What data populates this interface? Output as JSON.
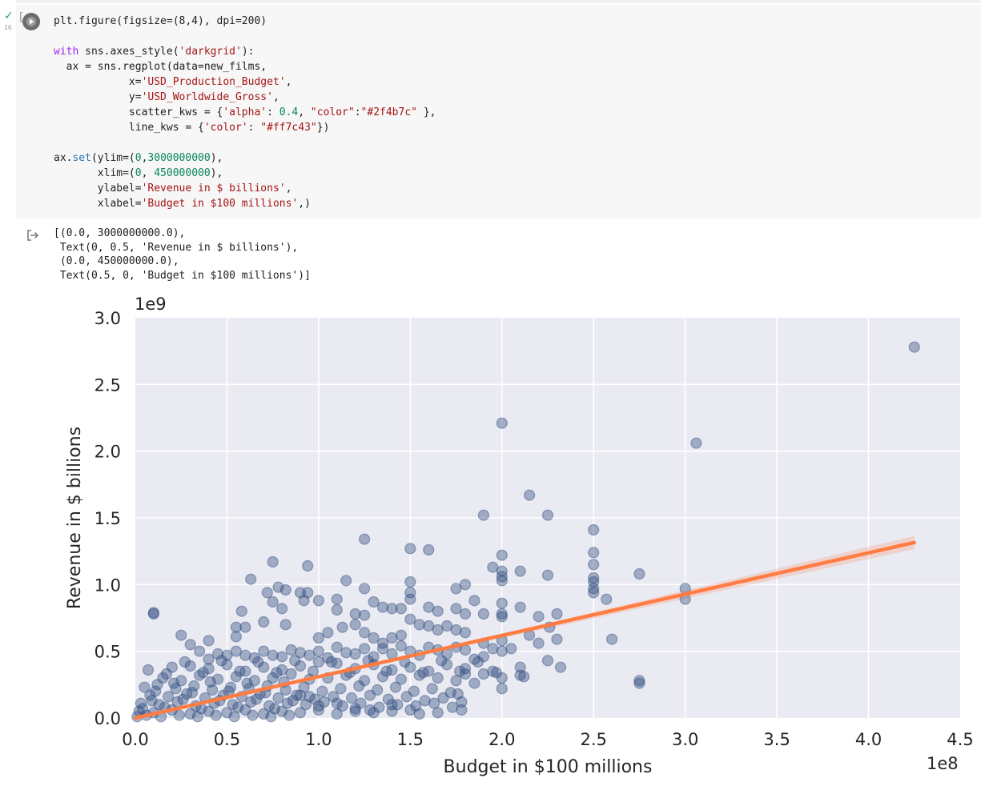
{
  "cell": {
    "status_check": "✓",
    "exec_count": "16",
    "bracket": "[",
    "run_icon": "play-circle-icon",
    "code": {
      "line1": "plt.figure(figsize=(8,4), dpi=200)",
      "line2_kw": "with",
      "line2_rest_a": " sns.axes_style(",
      "line2_str": "'darkgrid'",
      "line2_rest_b": "):",
      "line3": "  ax = sns.regplot(data=new_films,",
      "line4_a": "            x=",
      "line4_str": "'USD_Production_Budget'",
      "line4_b": ",",
      "line5_a": "            y=",
      "line5_str": "'USD_Worldwide_Gross'",
      "line5_b": ",",
      "line6_a": "            scatter_kws = {",
      "line6_s1": "'alpha'",
      "line6_b": ": ",
      "line6_n1": "0.4",
      "line6_c": ", ",
      "line6_s2": "\"color\"",
      "line6_d": ":",
      "line6_s3": "\"#2f4b7c\"",
      "line6_e": " },",
      "line7_a": "            line_kws = {",
      "line7_s1": "'color'",
      "line7_b": ": ",
      "line7_s2": "\"#ff7c43\"",
      "line7_c": "})",
      "line8_a": "ax.",
      "line8_fn": "set",
      "line8_b": "(ylim=(",
      "line8_n1": "0",
      "line8_c": ",",
      "line8_n2": "3000000000",
      "line8_d": "),",
      "line9_a": "       xlim=(",
      "line9_n1": "0",
      "line9_b": ", ",
      "line9_n2": "450000000",
      "line9_c": "),",
      "line10_a": "       ylabel=",
      "line10_str": "'Revenue in $ billions'",
      "line10_b": ",",
      "line11_a": "       xlabel=",
      "line11_str": "'Budget in $100 millions'",
      "line11_b": ",)"
    }
  },
  "output": {
    "icon": "output-arrow-icon",
    "lines": [
      "[(0.0, 3000000000.0),",
      " Text(0, 0.5, 'Revenue in $ billions'),",
      " (0.0, 450000000.0),",
      " Text(0.5, 0, 'Budget in $100 millions')]"
    ]
  },
  "chart_data": {
    "type": "scatter",
    "style": "darkgrid",
    "xlabel": "Budget in $100 millions",
    "ylabel": "Revenue in $ billions",
    "x_offset_label": "1e8",
    "y_offset_label": "1e9",
    "xlim": [
      0,
      450000000
    ],
    "ylim": [
      0,
      3000000000
    ],
    "x_ticks": [
      "0.0",
      "0.5",
      "1.0",
      "1.5",
      "2.0",
      "2.5",
      "3.0",
      "3.5",
      "4.0",
      "4.5"
    ],
    "y_ticks": [
      "0.0",
      "0.5",
      "1.0",
      "1.5",
      "2.0",
      "2.5",
      "3.0"
    ],
    "grid": true,
    "colors": {
      "scatter": "#2f4b7c",
      "line": "#ff7c43",
      "background": "#eaeaf2"
    },
    "alpha": 0.4,
    "regression": {
      "x": [
        0,
        425000000
      ],
      "y": [
        -10000000,
        1315000000
      ],
      "ci_halfwidth_end": 50000000
    },
    "points": [
      [
        425000000,
        2780000000
      ],
      [
        306000000,
        2060000000
      ],
      [
        200000000,
        2210000000
      ],
      [
        215000000,
        1670000000
      ],
      [
        225000000,
        1520000000
      ],
      [
        190000000,
        1520000000
      ],
      [
        250000000,
        1410000000
      ],
      [
        125000000,
        1340000000
      ],
      [
        150000000,
        1270000000
      ],
      [
        160000000,
        1260000000
      ],
      [
        75000000,
        1170000000
      ],
      [
        94000000,
        1140000000
      ],
      [
        250000000,
        1240000000
      ],
      [
        250000000,
        1150000000
      ],
      [
        200000000,
        1220000000
      ],
      [
        195000000,
        1130000000
      ],
      [
        200000000,
        1100000000
      ],
      [
        210000000,
        1100000000
      ],
      [
        225000000,
        1070000000
      ],
      [
        275000000,
        1080000000
      ],
      [
        250000000,
        1050000000
      ],
      [
        250000000,
        1020000000
      ],
      [
        200000000,
        1060000000
      ],
      [
        200000000,
        1030000000
      ],
      [
        150000000,
        1020000000
      ],
      [
        115000000,
        1030000000
      ],
      [
        63000000,
        1040000000
      ],
      [
        78000000,
        980000000
      ],
      [
        82000000,
        960000000
      ],
      [
        72000000,
        940000000
      ],
      [
        125000000,
        970000000
      ],
      [
        150000000,
        940000000
      ],
      [
        175000000,
        970000000
      ],
      [
        180000000,
        1000000000
      ],
      [
        250000000,
        970000000
      ],
      [
        250000000,
        940000000
      ],
      [
        300000000,
        970000000
      ],
      [
        300000000,
        890000000
      ],
      [
        257000000,
        890000000
      ],
      [
        200000000,
        860000000
      ],
      [
        210000000,
        830000000
      ],
      [
        185000000,
        880000000
      ],
      [
        150000000,
        890000000
      ],
      [
        130000000,
        870000000
      ],
      [
        110000000,
        890000000
      ],
      [
        100000000,
        880000000
      ],
      [
        92000000,
        880000000
      ],
      [
        90000000,
        940000000
      ],
      [
        94000000,
        940000000
      ],
      [
        75000000,
        870000000
      ],
      [
        80000000,
        820000000
      ],
      [
        58000000,
        800000000
      ],
      [
        10000000,
        790000000
      ],
      [
        10000000,
        780000000
      ],
      [
        110000000,
        810000000
      ],
      [
        120000000,
        780000000
      ],
      [
        125000000,
        770000000
      ],
      [
        135000000,
        830000000
      ],
      [
        140000000,
        820000000
      ],
      [
        145000000,
        820000000
      ],
      [
        160000000,
        830000000
      ],
      [
        165000000,
        800000000
      ],
      [
        175000000,
        820000000
      ],
      [
        180000000,
        780000000
      ],
      [
        190000000,
        780000000
      ],
      [
        200000000,
        780000000
      ],
      [
        200000000,
        760000000
      ],
      [
        220000000,
        760000000
      ],
      [
        230000000,
        780000000
      ],
      [
        226000000,
        680000000
      ],
      [
        230000000,
        590000000
      ],
      [
        260000000,
        590000000
      ],
      [
        275000000,
        280000000
      ],
      [
        275000000,
        260000000
      ],
      [
        225000000,
        430000000
      ],
      [
        232000000,
        380000000
      ],
      [
        210000000,
        380000000
      ],
      [
        210000000,
        320000000
      ],
      [
        212000000,
        310000000
      ],
      [
        200000000,
        220000000
      ],
      [
        195000000,
        350000000
      ],
      [
        180000000,
        330000000
      ],
      [
        176000000,
        180000000
      ],
      [
        178000000,
        60000000
      ],
      [
        150000000,
        60000000
      ],
      [
        140000000,
        100000000
      ],
      [
        128000000,
        60000000
      ],
      [
        120000000,
        70000000
      ],
      [
        110000000,
        110000000
      ],
      [
        100000000,
        90000000
      ],
      [
        95000000,
        160000000
      ],
      [
        90000000,
        170000000
      ],
      [
        25000000,
        620000000
      ],
      [
        40000000,
        580000000
      ],
      [
        30000000,
        550000000
      ],
      [
        55000000,
        610000000
      ],
      [
        55000000,
        680000000
      ],
      [
        60000000,
        680000000
      ],
      [
        70000000,
        720000000
      ],
      [
        82000000,
        700000000
      ],
      [
        100000000,
        600000000
      ],
      [
        105000000,
        640000000
      ],
      [
        113000000,
        680000000
      ],
      [
        120000000,
        700000000
      ],
      [
        125000000,
        640000000
      ],
      [
        130000000,
        600000000
      ],
      [
        135000000,
        560000000
      ],
      [
        140000000,
        600000000
      ],
      [
        145000000,
        620000000
      ],
      [
        150000000,
        740000000
      ],
      [
        155000000,
        700000000
      ],
      [
        160000000,
        690000000
      ],
      [
        165000000,
        660000000
      ],
      [
        170000000,
        690000000
      ],
      [
        175000000,
        660000000
      ],
      [
        180000000,
        640000000
      ],
      [
        190000000,
        560000000
      ],
      [
        200000000,
        580000000
      ],
      [
        205000000,
        520000000
      ],
      [
        215000000,
        620000000
      ],
      [
        220000000,
        560000000
      ],
      [
        35000000,
        500000000
      ],
      [
        40000000,
        440000000
      ],
      [
        45000000,
        480000000
      ],
      [
        50000000,
        470000000
      ],
      [
        55000000,
        500000000
      ],
      [
        60000000,
        470000000
      ],
      [
        65000000,
        450000000
      ],
      [
        70000000,
        500000000
      ],
      [
        75000000,
        470000000
      ],
      [
        80000000,
        460000000
      ],
      [
        85000000,
        510000000
      ],
      [
        90000000,
        490000000
      ],
      [
        95000000,
        470000000
      ],
      [
        100000000,
        500000000
      ],
      [
        105000000,
        450000000
      ],
      [
        110000000,
        530000000
      ],
      [
        115000000,
        490000000
      ],
      [
        120000000,
        480000000
      ],
      [
        125000000,
        520000000
      ],
      [
        130000000,
        460000000
      ],
      [
        135000000,
        520000000
      ],
      [
        140000000,
        480000000
      ],
      [
        145000000,
        540000000
      ],
      [
        150000000,
        500000000
      ],
      [
        155000000,
        470000000
      ],
      [
        160000000,
        530000000
      ],
      [
        165000000,
        510000000
      ],
      [
        170000000,
        480000000
      ],
      [
        175000000,
        530000000
      ],
      [
        180000000,
        510000000
      ],
      [
        185000000,
        440000000
      ],
      [
        190000000,
        460000000
      ],
      [
        195000000,
        520000000
      ],
      [
        200000000,
        500000000
      ],
      [
        20000000,
        380000000
      ],
      [
        30000000,
        390000000
      ],
      [
        40000000,
        370000000
      ],
      [
        50000000,
        400000000
      ],
      [
        60000000,
        350000000
      ],
      [
        70000000,
        380000000
      ],
      [
        80000000,
        360000000
      ],
      [
        90000000,
        390000000
      ],
      [
        100000000,
        420000000
      ],
      [
        110000000,
        410000000
      ],
      [
        120000000,
        370000000
      ],
      [
        130000000,
        400000000
      ],
      [
        140000000,
        360000000
      ],
      [
        150000000,
        380000000
      ],
      [
        160000000,
        350000000
      ],
      [
        170000000,
        400000000
      ],
      [
        180000000,
        370000000
      ],
      [
        190000000,
        330000000
      ],
      [
        200000000,
        300000000
      ],
      [
        15000000,
        300000000
      ],
      [
        25000000,
        280000000
      ],
      [
        35000000,
        320000000
      ],
      [
        45000000,
        290000000
      ],
      [
        55000000,
        310000000
      ],
      [
        65000000,
        280000000
      ],
      [
        75000000,
        300000000
      ],
      [
        85000000,
        330000000
      ],
      [
        95000000,
        290000000
      ],
      [
        105000000,
        300000000
      ],
      [
        115000000,
        320000000
      ],
      [
        125000000,
        280000000
      ],
      [
        135000000,
        310000000
      ],
      [
        145000000,
        290000000
      ],
      [
        155000000,
        320000000
      ],
      [
        165000000,
        300000000
      ],
      [
        175000000,
        280000000
      ],
      [
        185000000,
        260000000
      ],
      [
        5000000,
        230000000
      ],
      [
        12000000,
        250000000
      ],
      [
        22000000,
        220000000
      ],
      [
        32000000,
        240000000
      ],
      [
        42000000,
        210000000
      ],
      [
        52000000,
        230000000
      ],
      [
        62000000,
        220000000
      ],
      [
        72000000,
        240000000
      ],
      [
        82000000,
        210000000
      ],
      [
        92000000,
        230000000
      ],
      [
        102000000,
        200000000
      ],
      [
        112000000,
        220000000
      ],
      [
        122000000,
        240000000
      ],
      [
        132000000,
        210000000
      ],
      [
        142000000,
        230000000
      ],
      [
        152000000,
        200000000
      ],
      [
        162000000,
        220000000
      ],
      [
        172000000,
        190000000
      ],
      [
        8000000,
        170000000
      ],
      [
        18000000,
        160000000
      ],
      [
        28000000,
        180000000
      ],
      [
        38000000,
        150000000
      ],
      [
        48000000,
        170000000
      ],
      [
        58000000,
        160000000
      ],
      [
        68000000,
        180000000
      ],
      [
        78000000,
        150000000
      ],
      [
        88000000,
        170000000
      ],
      [
        98000000,
        140000000
      ],
      [
        108000000,
        160000000
      ],
      [
        118000000,
        150000000
      ],
      [
        128000000,
        170000000
      ],
      [
        138000000,
        140000000
      ],
      [
        148000000,
        160000000
      ],
      [
        158000000,
        130000000
      ],
      [
        168000000,
        150000000
      ],
      [
        178000000,
        120000000
      ],
      [
        3000000,
        110000000
      ],
      [
        13000000,
        100000000
      ],
      [
        23000000,
        120000000
      ],
      [
        33000000,
        90000000
      ],
      [
        43000000,
        110000000
      ],
      [
        53000000,
        100000000
      ],
      [
        63000000,
        120000000
      ],
      [
        73000000,
        90000000
      ],
      [
        83000000,
        110000000
      ],
      [
        93000000,
        100000000
      ],
      [
        103000000,
        120000000
      ],
      [
        113000000,
        90000000
      ],
      [
        123000000,
        110000000
      ],
      [
        133000000,
        80000000
      ],
      [
        143000000,
        100000000
      ],
      [
        153000000,
        90000000
      ],
      [
        163000000,
        110000000
      ],
      [
        173000000,
        80000000
      ],
      [
        2000000,
        50000000
      ],
      [
        10000000,
        40000000
      ],
      [
        20000000,
        60000000
      ],
      [
        30000000,
        30000000
      ],
      [
        40000000,
        50000000
      ],
      [
        50000000,
        40000000
      ],
      [
        60000000,
        60000000
      ],
      [
        70000000,
        30000000
      ],
      [
        80000000,
        50000000
      ],
      [
        90000000,
        40000000
      ],
      [
        100000000,
        60000000
      ],
      [
        110000000,
        30000000
      ],
      [
        120000000,
        50000000
      ],
      [
        130000000,
        40000000
      ],
      [
        140000000,
        50000000
      ],
      [
        155000000,
        30000000
      ],
      [
        165000000,
        40000000
      ],
      [
        1000000,
        10000000
      ],
      [
        6000000,
        20000000
      ],
      [
        14000000,
        10000000
      ],
      [
        24000000,
        20000000
      ],
      [
        34000000,
        10000000
      ],
      [
        44000000,
        20000000
      ],
      [
        54000000,
        10000000
      ],
      [
        64000000,
        20000000
      ],
      [
        74000000,
        10000000
      ],
      [
        84000000,
        20000000
      ],
      [
        4000000,
        70000000
      ],
      [
        9000000,
        130000000
      ],
      [
        16000000,
        80000000
      ],
      [
        26000000,
        140000000
      ],
      [
        36000000,
        70000000
      ],
      [
        46000000,
        130000000
      ],
      [
        56000000,
        80000000
      ],
      [
        66000000,
        140000000
      ],
      [
        76000000,
        70000000
      ],
      [
        86000000,
        130000000
      ],
      [
        11000000,
        200000000
      ],
      [
        21000000,
        260000000
      ],
      [
        31000000,
        190000000
      ],
      [
        41000000,
        270000000
      ],
      [
        51000000,
        200000000
      ],
      [
        61000000,
        260000000
      ],
      [
        71000000,
        190000000
      ],
      [
        81000000,
        270000000
      ],
      [
        7000000,
        360000000
      ],
      [
        17000000,
        330000000
      ],
      [
        27000000,
        420000000
      ],
      [
        37000000,
        340000000
      ],
      [
        47000000,
        430000000
      ],
      [
        57000000,
        350000000
      ],
      [
        67000000,
        420000000
      ],
      [
        77000000,
        340000000
      ],
      [
        87000000,
        430000000
      ],
      [
        97000000,
        350000000
      ],
      [
        107000000,
        420000000
      ],
      [
        117000000,
        340000000
      ],
      [
        127000000,
        430000000
      ],
      [
        137000000,
        350000000
      ],
      [
        147000000,
        420000000
      ],
      [
        157000000,
        340000000
      ],
      [
        167000000,
        430000000
      ],
      [
        177000000,
        350000000
      ],
      [
        187000000,
        420000000
      ],
      [
        197000000,
        340000000
      ]
    ]
  }
}
